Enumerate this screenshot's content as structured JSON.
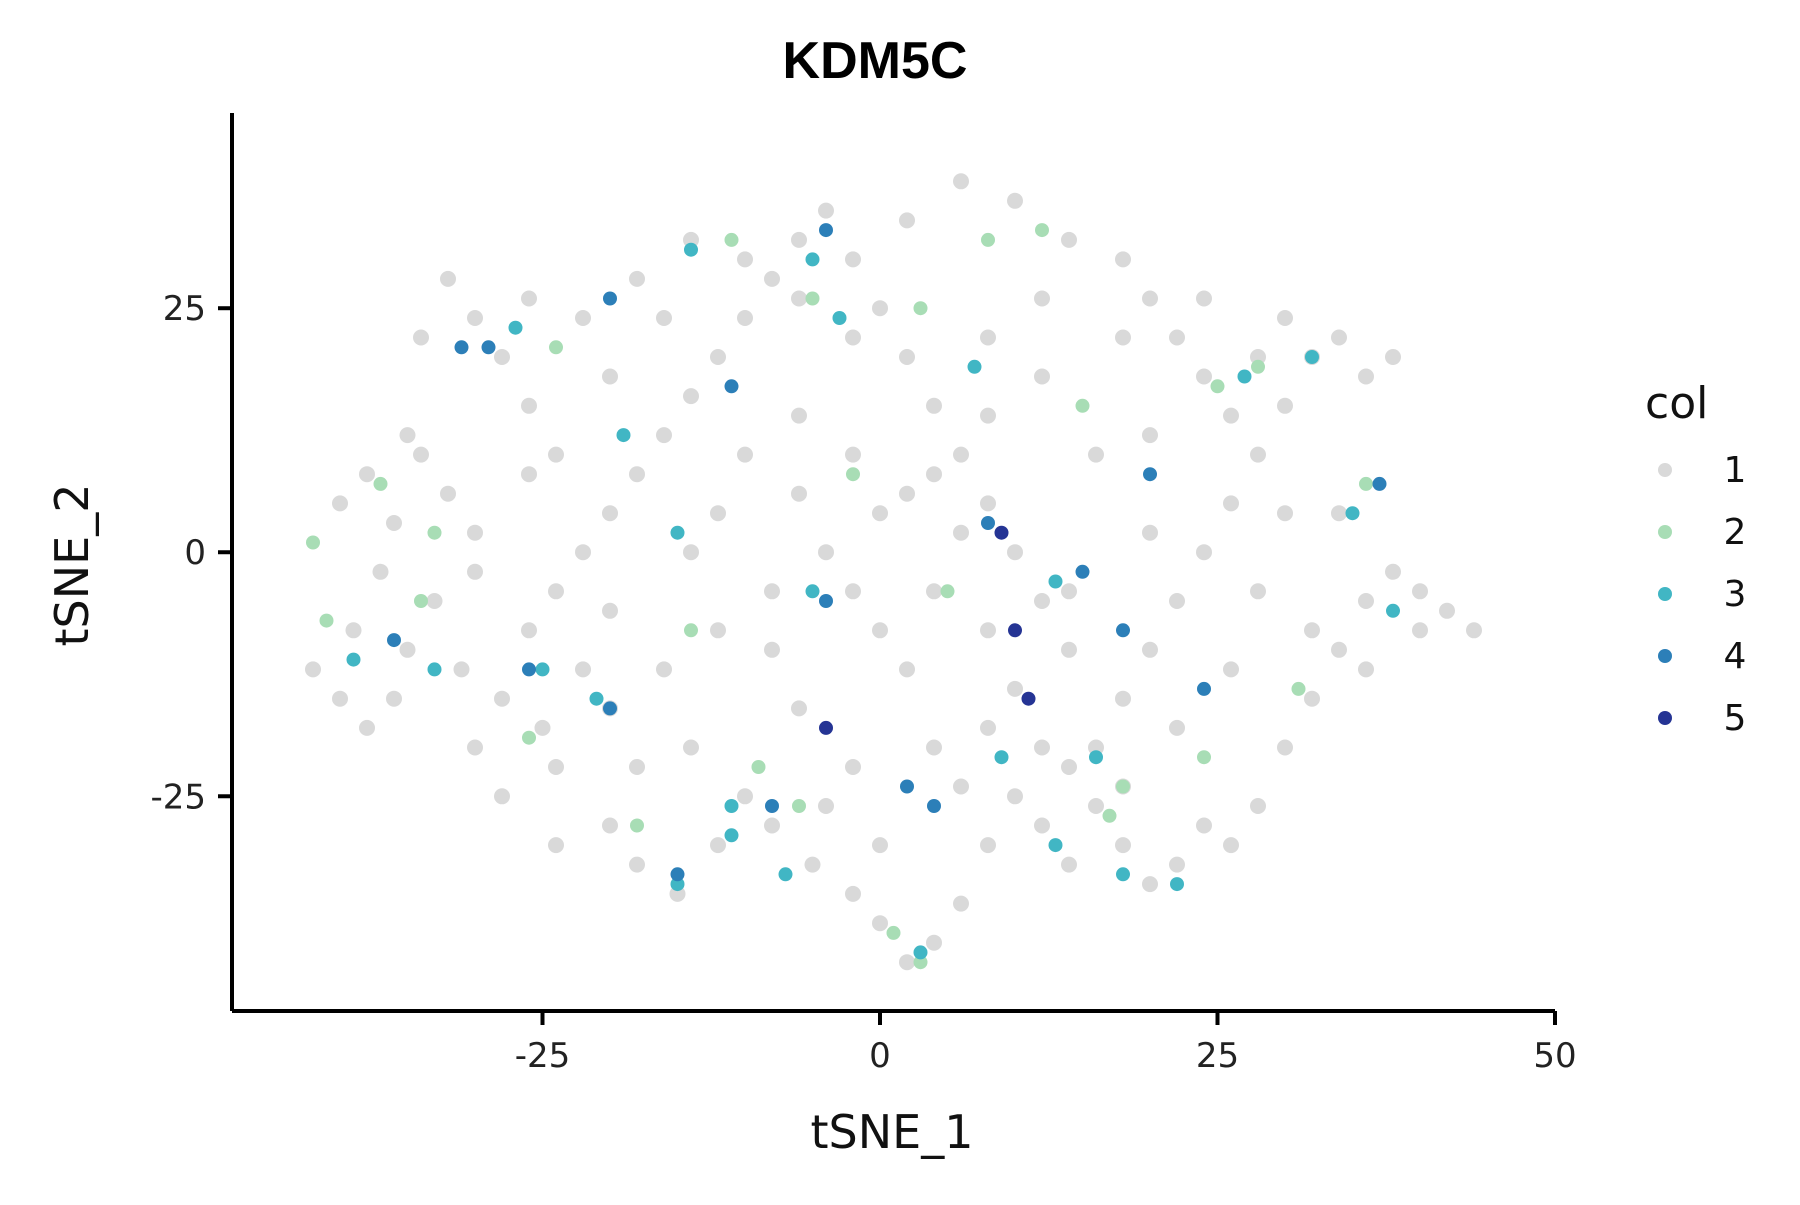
{
  "chart_data": {
    "type": "scatter",
    "title": "KDM5C",
    "xlabel": "tSNE_1",
    "ylabel": "tSNE_2",
    "xlim": [
      -48,
      50
    ],
    "ylim": [
      -47,
      45
    ],
    "xticks": [
      -25,
      0,
      25,
      50
    ],
    "xtick_labels": [
      "-25",
      "0",
      "25",
      "50"
    ],
    "yticks": [
      -25,
      0,
      25
    ],
    "ytick_labels": [
      "-25",
      "0",
      "25"
    ],
    "grid": false,
    "legend": {
      "title": "col",
      "placement": "right",
      "entries": [
        {
          "label": "1",
          "color": "#d9d9d9"
        },
        {
          "label": "2",
          "color": "#a8ddb5"
        },
        {
          "label": "3",
          "color": "#41b6c4"
        },
        {
          "label": "4",
          "color": "#2c7fb8"
        },
        {
          "label": "5",
          "color": "#253494"
        }
      ]
    },
    "series": [
      {
        "name": "1",
        "color": "#d9d9d9",
        "points": [
          [
            -40,
            5
          ],
          [
            -38,
            8
          ],
          [
            -36,
            3
          ],
          [
            -34,
            10
          ],
          [
            -32,
            6
          ],
          [
            -30,
            2
          ],
          [
            -37,
            -2
          ],
          [
            -35,
            12
          ],
          [
            -33,
            -5
          ],
          [
            -39,
            -8
          ],
          [
            -42,
            -12
          ],
          [
            -40,
            -15
          ],
          [
            -38,
            -18
          ],
          [
            -35,
            -10
          ],
          [
            -31,
            -12
          ],
          [
            -28,
            -15
          ],
          [
            -26,
            -8
          ],
          [
            -25,
            -18
          ],
          [
            -22,
            -12
          ],
          [
            -30,
            -20
          ],
          [
            -28,
            -25
          ],
          [
            -24,
            -22
          ],
          [
            -20,
            -28
          ],
          [
            -18,
            -32
          ],
          [
            -15,
            -35
          ],
          [
            -12,
            -30
          ],
          [
            -10,
            -25
          ],
          [
            -8,
            -28
          ],
          [
            -5,
            -32
          ],
          [
            -2,
            -35
          ],
          [
            0,
            -38
          ],
          [
            2,
            -42
          ],
          [
            4,
            -40
          ],
          [
            6,
            -36
          ],
          [
            8,
            -30
          ],
          [
            10,
            -25
          ],
          [
            12,
            -28
          ],
          [
            14,
            -32
          ],
          [
            16,
            -26
          ],
          [
            18,
            -30
          ],
          [
            20,
            -34
          ],
          [
            22,
            -32
          ],
          [
            24,
            -28
          ],
          [
            26,
            -30
          ],
          [
            28,
            -26
          ],
          [
            30,
            -20
          ],
          [
            32,
            -15
          ],
          [
            34,
            -10
          ],
          [
            36,
            -5
          ],
          [
            38,
            -2
          ],
          [
            40,
            -8
          ],
          [
            42,
            -6
          ],
          [
            44,
            -8
          ],
          [
            36,
            18
          ],
          [
            34,
            22
          ],
          [
            38,
            20
          ],
          [
            32,
            20
          ],
          [
            30,
            15
          ],
          [
            28,
            10
          ],
          [
            26,
            5
          ],
          [
            24,
            0
          ],
          [
            22,
            -5
          ],
          [
            20,
            -10
          ],
          [
            18,
            -15
          ],
          [
            16,
            -20
          ],
          [
            14,
            -10
          ],
          [
            12,
            -5
          ],
          [
            10,
            0
          ],
          [
            8,
            5
          ],
          [
            6,
            10
          ],
          [
            4,
            15
          ],
          [
            2,
            20
          ],
          [
            0,
            25
          ],
          [
            -2,
            30
          ],
          [
            -4,
            35
          ],
          [
            -6,
            32
          ],
          [
            -8,
            28
          ],
          [
            -10,
            24
          ],
          [
            -12,
            20
          ],
          [
            -14,
            16
          ],
          [
            -16,
            12
          ],
          [
            -18,
            8
          ],
          [
            -20,
            4
          ],
          [
            -22,
            0
          ],
          [
            -24,
            -4
          ],
          [
            -26,
            15
          ],
          [
            -28,
            20
          ],
          [
            -30,
            24
          ],
          [
            -32,
            28
          ],
          [
            -34,
            22
          ],
          [
            -26,
            26
          ],
          [
            -22,
            24
          ],
          [
            -18,
            28
          ],
          [
            -14,
            32
          ],
          [
            -10,
            30
          ],
          [
            -6,
            26
          ],
          [
            -2,
            22
          ],
          [
            2,
            34
          ],
          [
            6,
            38
          ],
          [
            10,
            36
          ],
          [
            14,
            32
          ],
          [
            18,
            30
          ],
          [
            20,
            26
          ],
          [
            22,
            22
          ],
          [
            24,
            18
          ],
          [
            26,
            14
          ],
          [
            28,
            20
          ],
          [
            30,
            24
          ],
          [
            24,
            26
          ],
          [
            18,
            22
          ],
          [
            12,
            18
          ],
          [
            8,
            14
          ],
          [
            4,
            8
          ],
          [
            0,
            4
          ],
          [
            -4,
            0
          ],
          [
            -8,
            -4
          ],
          [
            -12,
            -8
          ],
          [
            -16,
            -12
          ],
          [
            -20,
            -16
          ],
          [
            -14,
            -20
          ],
          [
            -6,
            -16
          ],
          [
            2,
            -12
          ],
          [
            8,
            -8
          ],
          [
            14,
            -4
          ],
          [
            20,
            2
          ],
          [
            26,
            -12
          ],
          [
            32,
            -8
          ],
          [
            36,
            -12
          ],
          [
            40,
            -4
          ],
          [
            -10,
            10
          ],
          [
            -6,
            14
          ],
          [
            -2,
            10
          ],
          [
            2,
            6
          ],
          [
            6,
            2
          ],
          [
            10,
            -14
          ],
          [
            4,
            -20
          ],
          [
            -2,
            -22
          ],
          [
            -8,
            -10
          ],
          [
            -14,
            0
          ],
          [
            -18,
            -22
          ],
          [
            -24,
            -30
          ],
          [
            -4,
            -26
          ],
          [
            0,
            -30
          ],
          [
            6,
            -24
          ],
          [
            12,
            -20
          ],
          [
            16,
            10
          ],
          [
            20,
            12
          ],
          [
            12,
            26
          ],
          [
            8,
            22
          ],
          [
            -16,
            24
          ],
          [
            -20,
            18
          ],
          [
            -26,
            8
          ],
          [
            -30,
            -2
          ],
          [
            -36,
            -15
          ],
          [
            -12,
            4
          ],
          [
            -6,
            6
          ],
          [
            0,
            -8
          ],
          [
            4,
            -4
          ],
          [
            8,
            -18
          ],
          [
            14,
            -22
          ],
          [
            18,
            -24
          ],
          [
            22,
            -18
          ],
          [
            28,
            -4
          ],
          [
            34,
            4
          ],
          [
            30,
            4
          ],
          [
            -2,
            -4
          ],
          [
            -20,
            -6
          ],
          [
            -24,
            10
          ]
        ]
      },
      {
        "name": "2",
        "color": "#a8ddb5",
        "points": [
          [
            -37,
            7
          ],
          [
            -42,
            1
          ],
          [
            -41,
            -7
          ],
          [
            -33,
            2
          ],
          [
            -26,
            -19
          ],
          [
            -18,
            -28
          ],
          [
            -6,
            -26
          ],
          [
            1,
            -39
          ],
          [
            3,
            -42
          ],
          [
            17,
            -27
          ],
          [
            24,
            -21
          ],
          [
            -11,
            32
          ],
          [
            -5,
            26
          ],
          [
            -2,
            8
          ],
          [
            3,
            25
          ],
          [
            8,
            32
          ],
          [
            12,
            33
          ],
          [
            18,
            -24
          ],
          [
            25,
            17
          ],
          [
            28,
            19
          ],
          [
            31,
            -14
          ],
          [
            -24,
            21
          ],
          [
            -14,
            -8
          ],
          [
            -9,
            -22
          ],
          [
            5,
            -4
          ],
          [
            15,
            15
          ],
          [
            -34,
            -5
          ],
          [
            36,
            7
          ]
        ]
      },
      {
        "name": "3",
        "color": "#41b6c4",
        "points": [
          [
            -39,
            -11
          ],
          [
            -33,
            -12
          ],
          [
            -21,
            -15
          ],
          [
            -15,
            -34
          ],
          [
            -11,
            -29
          ],
          [
            -7,
            -33
          ],
          [
            -5,
            -4
          ],
          [
            -15,
            2
          ],
          [
            3,
            -41
          ],
          [
            9,
            -21
          ],
          [
            13,
            -30
          ],
          [
            16,
            -21
          ],
          [
            22,
            -34
          ],
          [
            18,
            -33
          ],
          [
            -14,
            31
          ],
          [
            -5,
            30
          ],
          [
            -3,
            24
          ],
          [
            7,
            19
          ],
          [
            13,
            -3
          ],
          [
            35,
            4
          ],
          [
            38,
            -6
          ],
          [
            32,
            20
          ],
          [
            -27,
            23
          ],
          [
            -19,
            12
          ],
          [
            -11,
            -26
          ],
          [
            -25,
            -12
          ],
          [
            27,
            18
          ]
        ]
      },
      {
        "name": "4",
        "color": "#2c7fb8",
        "points": [
          [
            -29,
            21
          ],
          [
            -20,
            -16
          ],
          [
            -15,
            -33
          ],
          [
            -11,
            17
          ],
          [
            -8,
            -26
          ],
          [
            -4,
            33
          ],
          [
            2,
            -24
          ],
          [
            8,
            3
          ],
          [
            15,
            -2
          ],
          [
            18,
            -8
          ],
          [
            20,
            8
          ],
          [
            24,
            -14
          ],
          [
            37,
            7
          ],
          [
            -31,
            21
          ],
          [
            -20,
            26
          ],
          [
            -4,
            -5
          ],
          [
            4,
            -26
          ],
          [
            -26,
            -12
          ],
          [
            -36,
            -9
          ]
        ]
      },
      {
        "name": "5",
        "color": "#253494",
        "points": [
          [
            10,
            -8
          ],
          [
            11,
            -15
          ],
          [
            -4,
            -18
          ],
          [
            9,
            2
          ]
        ]
      }
    ]
  }
}
